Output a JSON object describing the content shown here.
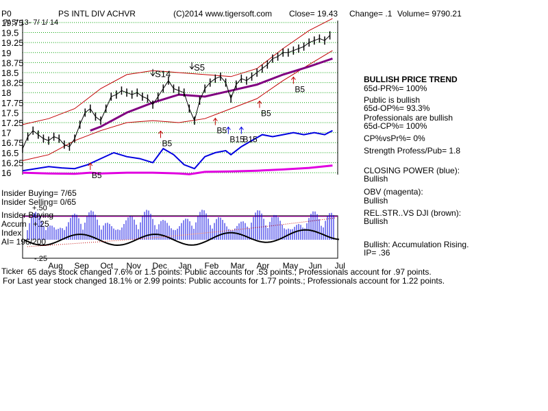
{
  "header": {
    "code": "P0",
    "name": "PS INTL DIV ACHVR",
    "copyright": "(C)2014 www.tigersoft.com",
    "close": "Close=  19.43",
    "change": "Change= .1",
    "volume": "Volume= 9790.21",
    "date_range": "7/ 5/ 13- 7/ 1/ 14"
  },
  "side_panel": [
    {
      "text": "BULLISH PRICE TREND",
      "bold": true
    },
    {
      "text": "    65d-PR%= 100%",
      "bold": false
    },
    {
      "text": "Public is bullish",
      "bold": false
    },
    {
      "text": "    65d-OP%= 93.3%",
      "bold": false
    },
    {
      "text": "Professionals are bullish",
      "bold": false
    },
    {
      "text": "    65d-CP%= 100%",
      "bold": false
    },
    {
      "text": "CP%vsPr%=  0%",
      "bold": false
    },
    {
      "text": "Strength Profess/Pub= 1.8",
      "bold": false
    },
    {
      "text": "CLOSING POWER (blue):",
      "bold": false
    },
    {
      "text": "Bullish",
      "bold": false
    },
    {
      "text": "OBV (magenta):",
      "bold": false
    },
    {
      "text": "Bullish",
      "bold": false
    },
    {
      "text": "REL.STR..VS DJI (brown):",
      "bold": false
    },
    {
      "text": "Bullish",
      "bold": false
    },
    {
      "text": "Bullish: Accumulation Rising.",
      "bold": false
    },
    {
      "text": "       IP=  .36",
      "bold": false
    }
  ],
  "indicator_labels": {
    "insider_buying": "Insider Buying= 7/65",
    "insider_selling": "Insider Selling= 0/65",
    "ai_title1": "Insider Buying",
    "ai_title2": "Accum",
    "ai_title3": "Index",
    "ai_value": "AI= 196/200",
    "plus25": "+.25",
    "plus50": "+.50",
    "minus25": "-.25",
    "bottom_left": "Ticker"
  },
  "footer": {
    "line1": "65 days stock changed  7.6% or  1.5 points:  Public accounts for  .53 points.;  Professionals account for  .97 points.",
    "line2": "For Last year stock changed  18.1% or  2.99 points:  Public accounts for  1.77 points.;  Professionals account for  1.22 points."
  },
  "chart_data": {
    "type": "line",
    "y_ticks": [
      19.75,
      19.5,
      19.25,
      19,
      18.75,
      18.5,
      18.25,
      18,
      17.75,
      17.5,
      17.25,
      17,
      16.75,
      16.5,
      16.25,
      16
    ],
    "y_tick_labels": [
      "19.75",
      "19.5",
      "19.25",
      "19",
      "18.75",
      "18.5",
      "18.25",
      "18",
      "17.75",
      "17.5",
      "17.25",
      "17",
      "16.75",
      "16.5",
      "16.25",
      "16"
    ],
    "ylim": [
      15.95,
      19.8
    ],
    "month_labels": [
      "Aug",
      "Sep",
      "Oct",
      "Nov",
      "Dec",
      "Jan",
      "Feb",
      "Mar",
      "Apr",
      "May",
      "Jun",
      "Jul"
    ],
    "month_positions": [
      1.3,
      2.3,
      3.3,
      4.3,
      5.3,
      6.3,
      7.3,
      8.3,
      9.3,
      10.3,
      11.3,
      12.3
    ],
    "x_range": [
      0,
      12.1
    ],
    "grid": true,
    "close": [
      [
        0,
        16.6
      ],
      [
        0.2,
        16.9
      ],
      [
        0.4,
        17.05
      ],
      [
        0.6,
        16.95
      ],
      [
        0.8,
        16.85
      ],
      [
        1.0,
        16.8
      ],
      [
        1.2,
        16.9
      ],
      [
        1.4,
        16.85
      ],
      [
        1.6,
        16.7
      ],
      [
        1.8,
        16.65
      ],
      [
        2.0,
        16.85
      ],
      [
        2.2,
        17.2
      ],
      [
        2.4,
        17.5
      ],
      [
        2.6,
        17.6
      ],
      [
        2.8,
        17.4
      ],
      [
        3.0,
        17.3
      ],
      [
        3.2,
        17.6
      ],
      [
        3.4,
        17.9
      ],
      [
        3.6,
        17.95
      ],
      [
        3.8,
        18.05
      ],
      [
        4.0,
        18.0
      ],
      [
        4.2,
        17.95
      ],
      [
        4.4,
        18.0
      ],
      [
        4.6,
        17.9
      ],
      [
        4.8,
        17.85
      ],
      [
        5.0,
        17.7
      ],
      [
        5.2,
        17.9
      ],
      [
        5.4,
        18.1
      ],
      [
        5.6,
        18.3
      ],
      [
        5.8,
        18.1
      ],
      [
        6.0,
        18.05
      ],
      [
        6.2,
        18.0
      ],
      [
        6.4,
        17.6
      ],
      [
        6.6,
        17.3
      ],
      [
        6.8,
        17.8
      ],
      [
        7.0,
        18.1
      ],
      [
        7.2,
        18.25
      ],
      [
        7.4,
        18.35
      ],
      [
        7.6,
        18.4
      ],
      [
        7.8,
        18.25
      ],
      [
        8.0,
        17.85
      ],
      [
        8.2,
        18.2
      ],
      [
        8.4,
        18.35
      ],
      [
        8.6,
        18.3
      ],
      [
        8.8,
        18.4
      ],
      [
        9.0,
        18.5
      ],
      [
        9.2,
        18.6
      ],
      [
        9.4,
        18.7
      ],
      [
        9.6,
        18.85
      ],
      [
        9.8,
        18.9
      ],
      [
        10.0,
        19.0
      ],
      [
        10.2,
        19.0
      ],
      [
        10.4,
        19.05
      ],
      [
        10.6,
        19.1
      ],
      [
        10.8,
        19.15
      ],
      [
        11.0,
        19.25
      ],
      [
        11.2,
        19.3
      ],
      [
        11.4,
        19.35
      ],
      [
        11.6,
        19.3
      ],
      [
        11.8,
        19.43
      ]
    ],
    "upper_band": [
      [
        0,
        17.2
      ],
      [
        1.0,
        17.35
      ],
      [
        2.0,
        17.6
      ],
      [
        3.0,
        18.1
      ],
      [
        4.0,
        18.45
      ],
      [
        5.0,
        18.55
      ],
      [
        6.0,
        18.5
      ],
      [
        7.0,
        18.45
      ],
      [
        8.0,
        18.4
      ],
      [
        9.0,
        18.6
      ],
      [
        10.0,
        19.1
      ],
      [
        11.0,
        19.55
      ],
      [
        11.9,
        19.85
      ]
    ],
    "lower_band": [
      [
        0,
        16.3
      ],
      [
        1.0,
        16.45
      ],
      [
        2.0,
        16.8
      ],
      [
        3.0,
        17.05
      ],
      [
        4.0,
        17.25
      ],
      [
        5.0,
        17.3
      ],
      [
        6.0,
        17.25
      ],
      [
        7.0,
        17.35
      ],
      [
        8.0,
        17.6
      ],
      [
        9.0,
        17.85
      ],
      [
        10.0,
        18.3
      ],
      [
        11.0,
        18.7
      ],
      [
        11.9,
        19.05
      ]
    ],
    "moving_average": [
      [
        2.6,
        17.05
      ],
      [
        3.0,
        17.15
      ],
      [
        4.0,
        17.5
      ],
      [
        5.0,
        17.75
      ],
      [
        6.0,
        17.95
      ],
      [
        7.0,
        17.9
      ],
      [
        8.0,
        18.05
      ],
      [
        9.0,
        18.2
      ],
      [
        10.0,
        18.45
      ],
      [
        11.0,
        18.65
      ],
      [
        11.9,
        18.85
      ]
    ],
    "signals": [
      {
        "label": "S14",
        "x": 5.0,
        "y": 18.35,
        "type": "sell"
      },
      {
        "label": "S5",
        "x": 6.5,
        "y": 18.52,
        "type": "sell"
      },
      {
        "label": "B5",
        "x": 5.3,
        "y": 16.8,
        "type": "buy"
      },
      {
        "label": "B5",
        "x": 7.4,
        "y": 17.12,
        "type": "buy"
      },
      {
        "label": "B15",
        "x": 7.9,
        "y": 16.9,
        "type": "buy"
      },
      {
        "label": "B15",
        "x": 8.4,
        "y": 16.9,
        "type": "buy"
      },
      {
        "label": "B5",
        "x": 9.1,
        "y": 17.55,
        "type": "buy"
      },
      {
        "label": "B5",
        "x": 10.4,
        "y": 18.15,
        "type": "buy"
      },
      {
        "label": "B5",
        "x": 2.6,
        "y": 16.0,
        "type": "buy"
      }
    ],
    "closing_power": [
      [
        0,
        16.05
      ],
      [
        0.5,
        16.1
      ],
      [
        1.0,
        16.15
      ],
      [
        1.5,
        16.12
      ],
      [
        2.0,
        16.1
      ],
      [
        2.5,
        16.2
      ],
      [
        3.0,
        16.35
      ],
      [
        3.5,
        16.5
      ],
      [
        4.0,
        16.4
      ],
      [
        4.5,
        16.35
      ],
      [
        5.0,
        16.25
      ],
      [
        5.4,
        16.6
      ],
      [
        5.8,
        16.45
      ],
      [
        6.2,
        16.2
      ],
      [
        6.6,
        16.1
      ],
      [
        7.0,
        16.4
      ],
      [
        7.4,
        16.5
      ],
      [
        7.8,
        16.55
      ],
      [
        8.0,
        16.45
      ],
      [
        8.4,
        16.65
      ],
      [
        8.8,
        16.8
      ],
      [
        9.2,
        16.95
      ],
      [
        9.6,
        16.9
      ],
      [
        10.0,
        16.95
      ],
      [
        10.4,
        17.0
      ],
      [
        10.8,
        16.95
      ],
      [
        11.2,
        17.0
      ],
      [
        11.6,
        16.95
      ],
      [
        11.9,
        17.05
      ]
    ],
    "obv": [
      [
        0,
        16.0
      ],
      [
        1.0,
        15.98
      ],
      [
        2.0,
        15.97
      ],
      [
        2.6,
        16.0
      ],
      [
        3.0,
        15.98
      ],
      [
        4.0,
        16.0
      ],
      [
        5.0,
        16.0
      ],
      [
        6.0,
        15.98
      ],
      [
        6.4,
        15.96
      ],
      [
        7.0,
        16.02
      ],
      [
        8.0,
        16.03
      ],
      [
        9.0,
        16.05
      ],
      [
        10.0,
        16.08
      ],
      [
        11.0,
        16.12
      ],
      [
        11.9,
        16.18
      ]
    ]
  }
}
